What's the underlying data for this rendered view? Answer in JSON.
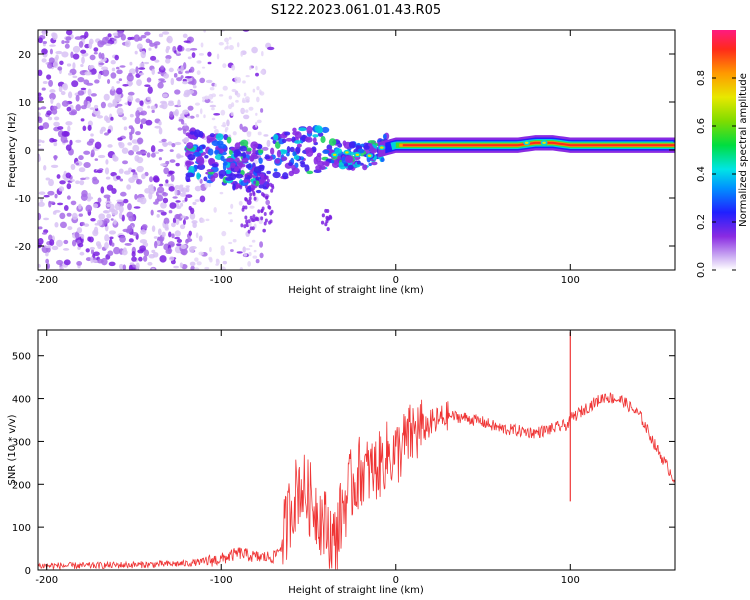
{
  "title": "S122.2023.061.01.43.R05",
  "chart_data": [
    {
      "type": "heatmap",
      "xlabel": "Height of straight line (km)",
      "ylabel": "Frequency (Hz)",
      "xlim": [
        -205,
        160
      ],
      "ylim": [
        -25,
        25
      ],
      "xticks": [
        -200,
        -100,
        0,
        100
      ],
      "yticks": [
        -20,
        -10,
        0,
        10,
        20
      ],
      "colorbar": {
        "label": "Normalized spectral amplitude",
        "range": [
          0,
          1
        ],
        "ticks": [
          0.0,
          0.2,
          0.4,
          0.6,
          0.8
        ]
      },
      "tone_track": {
        "x": [
          -120,
          -100,
          -80,
          -60,
          -45,
          -30,
          -20,
          -10,
          0,
          20,
          70,
          80,
          90,
          100,
          160
        ],
        "freq": [
          -1,
          -2,
          -4,
          0,
          0,
          -1,
          -1.5,
          0,
          1,
          1,
          1,
          1.5,
          1.5,
          1,
          1
        ]
      }
    },
    {
      "type": "line",
      "xlabel": "Height of straight line (km)",
      "ylabel": "SNR (10 * v/v)",
      "xlim": [
        -205,
        160
      ],
      "ylim": [
        0,
        560
      ],
      "xticks": [
        -200,
        -100,
        0,
        100
      ],
      "yticks": [
        0,
        100,
        200,
        300,
        400,
        500
      ],
      "series": [
        {
          "color": "#ef3535",
          "x": [
            -205,
            -180,
            -150,
            -120,
            -100,
            -90,
            -80,
            -70,
            -65,
            -60,
            -55,
            -50,
            -45,
            -40,
            -35,
            -30,
            -25,
            -20,
            -15,
            -10,
            -5,
            0,
            10,
            20,
            30,
            40,
            50,
            60,
            70,
            80,
            90,
            99,
            100,
            101,
            110,
            120,
            130,
            140,
            150,
            160
          ],
          "y": [
            10,
            10,
            12,
            15,
            25,
            40,
            30,
            30,
            60,
            150,
            200,
            170,
            140,
            100,
            60,
            150,
            200,
            230,
            230,
            240,
            270,
            270,
            320,
            340,
            360,
            355,
            345,
            330,
            325,
            320,
            330,
            340,
            350,
            355,
            380,
            405,
            395,
            360,
            280,
            210
          ]
        }
      ],
      "spike": {
        "x": 100,
        "top": 555,
        "bottom": 160
      }
    }
  ]
}
